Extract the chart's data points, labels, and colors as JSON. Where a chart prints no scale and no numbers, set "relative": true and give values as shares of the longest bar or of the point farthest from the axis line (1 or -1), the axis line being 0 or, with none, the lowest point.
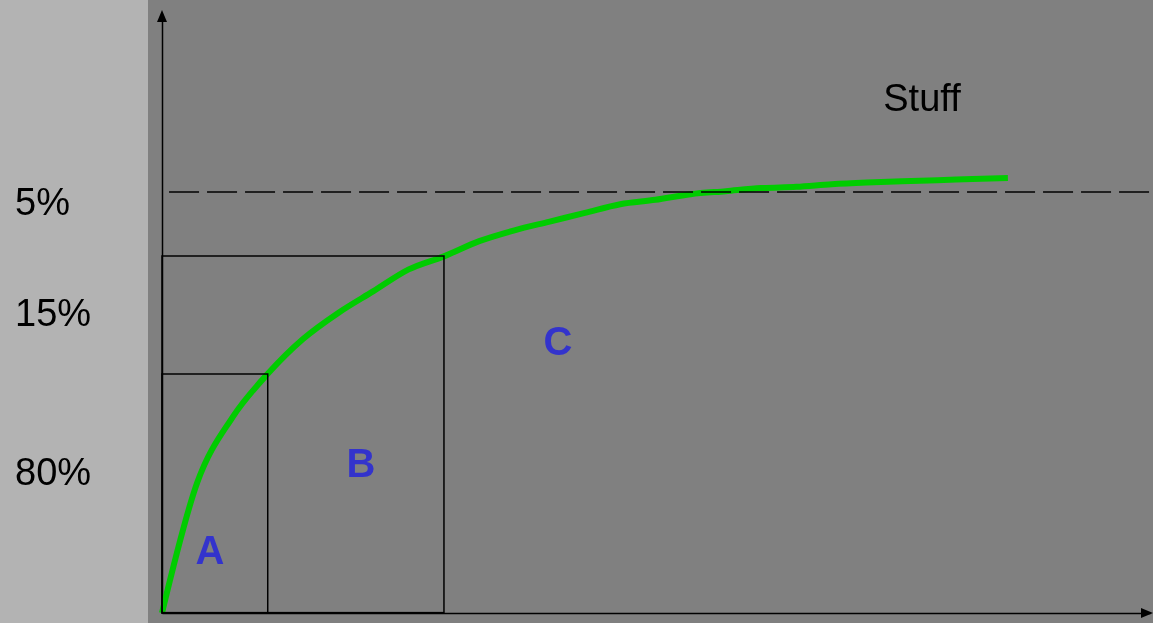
{
  "chart_data": {
    "type": "line",
    "relative": true,
    "color": "#00cc00",
    "categories": [
      null,
      null,
      null,
      null,
      null,
      null,
      null,
      null,
      null,
      null,
      null,
      null,
      null,
      null,
      null,
      null,
      null,
      null,
      null,
      null,
      null,
      null,
      null,
      null,
      null
    ],
    "values": [
      0,
      0.3,
      0.45,
      0.55,
      0.63,
      0.69,
      0.74,
      0.79,
      0.82,
      0.855,
      0.88,
      0.9,
      0.92,
      0.94,
      0.95,
      0.963,
      0.97,
      0.977,
      0.98,
      0.986,
      0.99,
      0.993,
      0.995,
      0.998,
      1
    ],
    "ref_lines": [
      {
        "axis": "y",
        "value": 0.968,
        "line_style": "dashed",
        "color": "#000000"
      }
    ],
    "annotations": [
      "80%",
      "15%",
      "5%",
      "A",
      "B",
      "C",
      "Stuff"
    ]
  }
}
